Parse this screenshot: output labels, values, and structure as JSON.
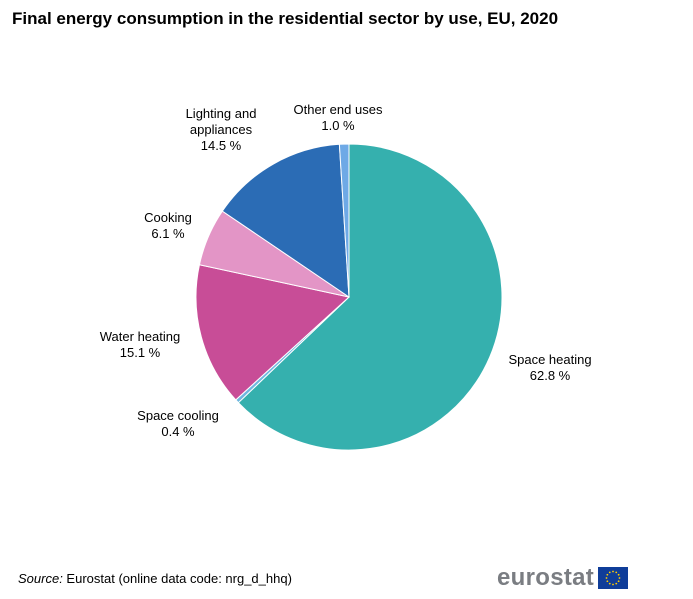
{
  "title": "Final energy consumption in the residential sector by use, EU, 2020",
  "chart_data": {
    "type": "pie",
    "title": "Final energy consumption in the residential sector by use, EU, 2020",
    "unit": "%",
    "start": "12 o'clock",
    "direction": "clockwise",
    "slices": [
      {
        "name": "Space heating",
        "value": 62.8,
        "text": "62.8 %",
        "color": "#35b0ae"
      },
      {
        "name": "Space cooling",
        "value": 0.4,
        "text": "0.4 %",
        "color": "#6fb7e0"
      },
      {
        "name": "Water heating",
        "value": 15.1,
        "text": "15.1 %",
        "color": "#c84d97"
      },
      {
        "name": "Cooking",
        "value": 6.1,
        "text": "6.1 %",
        "color": "#e395c6"
      },
      {
        "name": "Lighting and appliances",
        "value": 14.5,
        "text": "14.5 %",
        "color": "#2b6cb5"
      },
      {
        "name": "Other end uses",
        "value": 1.0,
        "text": "1.0 %",
        "color": "#6ea9e6"
      }
    ]
  },
  "labels": {
    "space_heating": {
      "name": "Space heating",
      "value": "62.8 %"
    },
    "space_cooling": {
      "name": "Space cooling",
      "value": "0.4 %"
    },
    "water_heating": {
      "name": "Water heating",
      "value": "15.1 %"
    },
    "cooking": {
      "name": "Cooking",
      "value": "6.1 %"
    },
    "lighting": {
      "name_line1": "Lighting  and",
      "name_line2": "appliances",
      "value": "14.5 %"
    },
    "other": {
      "name": "Other end uses",
      "value": "1.0 %"
    }
  },
  "footer": {
    "source_label": "Source:",
    "source_text": " Eurostat (online data code: nrg_d_hhq)",
    "logo_text": "eurostat"
  },
  "colors": {
    "logo_text": "#7a7d82",
    "eu_flag_blue": "#0f3d99",
    "eu_flag_stars": "#ffcc00"
  },
  "icons": {
    "logo": "eu-flag-icon"
  }
}
